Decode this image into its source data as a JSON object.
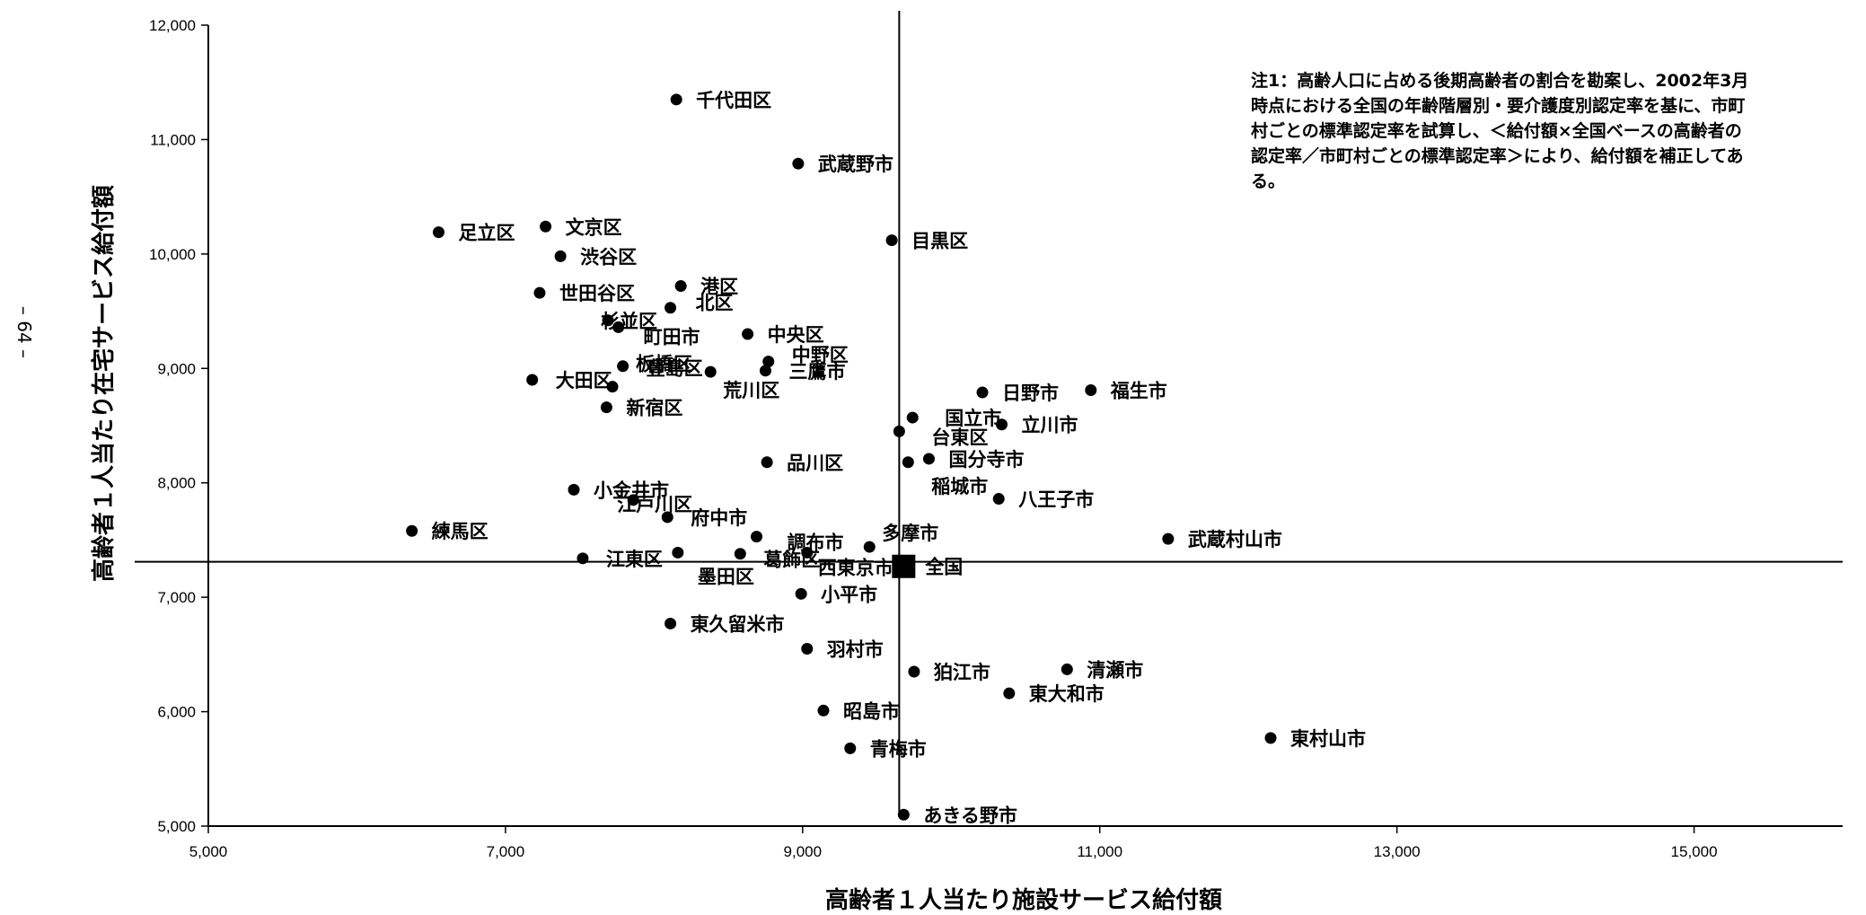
{
  "page_number": "– 64 –",
  "note_lines": [
    "注1：高齢人口に占める後期高齢者の割合を勘案し、2002年3月",
    "時点における全国の年齢階層別・要介護度別認定率を基に、市町",
    "村ごとの標準認定率を試算し、＜給付額×全国ベースの高齢者の",
    "認定率／市町村ごとの標準認定率＞により、給付額を補正してあ",
    "る。"
  ],
  "chart_data": {
    "type": "scatter",
    "title": "",
    "xlabel": "高齢者１人当たり施設サービス給付額",
    "ylabel": "高齢者１人当たり在宅サービス給付額",
    "xlim": [
      5000,
      16000
    ],
    "ylim": [
      5000,
      12000
    ],
    "x_ticks": [
      5000,
      7000,
      9000,
      11000,
      13000,
      15000
    ],
    "x_tick_labels": [
      "5,000",
      "7,000",
      "9,000",
      "11,000",
      "13,000",
      "15,000"
    ],
    "y_ticks": [
      5000,
      6000,
      7000,
      8000,
      9000,
      10000,
      11000,
      12000
    ],
    "y_tick_labels": [
      "5,000",
      "6,000",
      "7,000",
      "8,000",
      "9,000",
      "10,000",
      "11,000",
      "12,000"
    ],
    "grid": false,
    "reference_lines": {
      "x": 9650,
      "y": 7310
    },
    "reference_point": {
      "label": "全国",
      "x": 9680,
      "y": 7270
    },
    "points": [
      {
        "label": "千代田区",
        "x": 8150,
        "y": 11350
      },
      {
        "label": "武蔵野市",
        "x": 8970,
        "y": 10790
      },
      {
        "label": "足立区",
        "x": 6550,
        "y": 10190
      },
      {
        "label": "文京区",
        "x": 7270,
        "y": 10240
      },
      {
        "label": "渋谷区",
        "x": 7370,
        "y": 9980
      },
      {
        "label": "目黒区",
        "x": 9600,
        "y": 10120
      },
      {
        "label": "世田谷区",
        "x": 7230,
        "y": 9660
      },
      {
        "label": "港区",
        "x": 8180,
        "y": 9720
      },
      {
        "label": "杉並区",
        "x": 7690,
        "y": 9420
      },
      {
        "label": "北区",
        "x": 8110,
        "y": 9530
      },
      {
        "label": "町田市",
        "x": 7760,
        "y": 9360
      },
      {
        "label": "中央区",
        "x": 8630,
        "y": 9300
      },
      {
        "label": "中野区",
        "x": 8770,
        "y": 9060
      },
      {
        "label": "豊島区",
        "x": 7790,
        "y": 9020
      },
      {
        "label": "荒川区",
        "x": 8380,
        "y": 8970
      },
      {
        "label": "三鷹市",
        "x": 8750,
        "y": 8980
      },
      {
        "label": "大田区",
        "x": 7180,
        "y": 8900
      },
      {
        "label": "板橋区",
        "x": 7720,
        "y": 8840
      },
      {
        "label": "新宿区",
        "x": 7680,
        "y": 8660
      },
      {
        "label": "日野市",
        "x": 10210,
        "y": 8790
      },
      {
        "label": "福生市",
        "x": 10940,
        "y": 8810
      },
      {
        "label": "国立市",
        "x": 9740,
        "y": 8570
      },
      {
        "label": "台東区",
        "x": 9650,
        "y": 8450
      },
      {
        "label": "立川市",
        "x": 10340,
        "y": 8510
      },
      {
        "label": "品川区",
        "x": 8760,
        "y": 8180
      },
      {
        "label": "国分寺市",
        "x": 9850,
        "y": 8210
      },
      {
        "label": "稲城市",
        "x": 9710,
        "y": 8180
      },
      {
        "label": "小金井市",
        "x": 7460,
        "y": 7940
      },
      {
        "label": "江戸川区",
        "x": 7860,
        "y": 7850
      },
      {
        "label": "八王子市",
        "x": 10320,
        "y": 7860
      },
      {
        "label": "府中市",
        "x": 8090,
        "y": 7700
      },
      {
        "label": "練馬区",
        "x": 6370,
        "y": 7580
      },
      {
        "label": "調布市",
        "x": 8690,
        "y": 7530
      },
      {
        "label": "多摩市",
        "x": 9450,
        "y": 7440
      },
      {
        "label": "武蔵村山市",
        "x": 11460,
        "y": 7510
      },
      {
        "label": "葛飾区",
        "x": 8580,
        "y": 7380
      },
      {
        "label": "西東京市",
        "x": 9030,
        "y": 7390
      },
      {
        "label": "江東区",
        "x": 7520,
        "y": 7340
      },
      {
        "label": "墨田区",
        "x": 8160,
        "y": 7390
      },
      {
        "label": "小平市",
        "x": 8990,
        "y": 7030
      },
      {
        "label": "東久留米市",
        "x": 8110,
        "y": 6770
      },
      {
        "label": "羽村市",
        "x": 9030,
        "y": 6550
      },
      {
        "label": "狛江市",
        "x": 9750,
        "y": 6350
      },
      {
        "label": "清瀬市",
        "x": 10780,
        "y": 6370
      },
      {
        "label": "東大和市",
        "x": 10390,
        "y": 6160
      },
      {
        "label": "昭島市",
        "x": 9140,
        "y": 6010
      },
      {
        "label": "東村山市",
        "x": 12150,
        "y": 5770
      },
      {
        "label": "青梅市",
        "x": 9320,
        "y": 5680
      },
      {
        "label": "あきる野市",
        "x": 9680,
        "y": 5100
      }
    ]
  }
}
